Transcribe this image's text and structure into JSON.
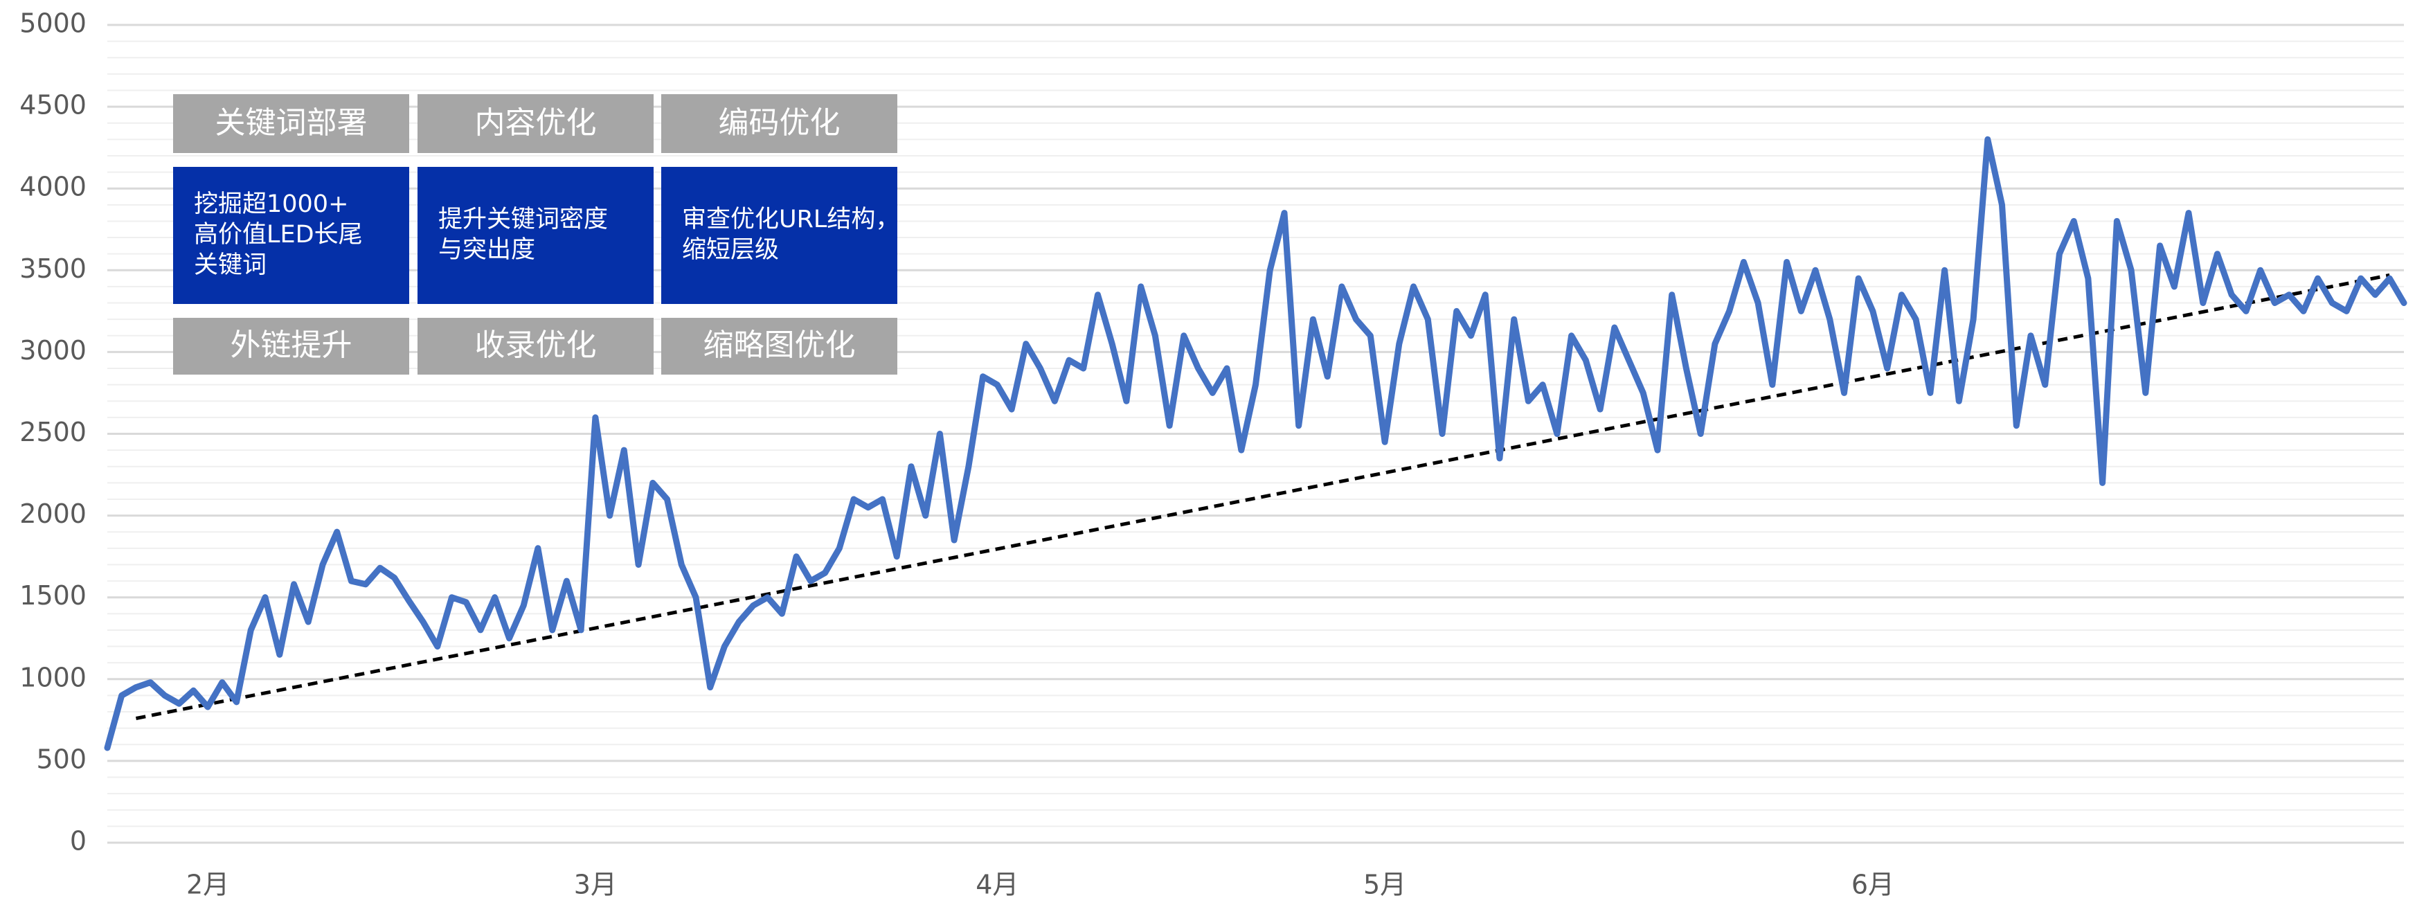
{
  "chart_data": {
    "type": "line",
    "categories": [
      null,
      null,
      null,
      null,
      null,
      null,
      null,
      "2月",
      null,
      null,
      null,
      null,
      null,
      null,
      null,
      null,
      null,
      null,
      null,
      null,
      null,
      null,
      null,
      null,
      null,
      null,
      null,
      null,
      null,
      null,
      null,
      null,
      null,
      null,
      "3月",
      null,
      null,
      null,
      null,
      null,
      null,
      null,
      null,
      null,
      null,
      null,
      null,
      null,
      null,
      null,
      null,
      null,
      null,
      null,
      null,
      null,
      null,
      null,
      null,
      null,
      null,
      null,
      "4月",
      null,
      null,
      null,
      null,
      null,
      null,
      null,
      null,
      null,
      null,
      null,
      null,
      null,
      null,
      null,
      null,
      null,
      null,
      null,
      null,
      null,
      null,
      null,
      null,
      null,
      null,
      "5月",
      null,
      null,
      null,
      null,
      null,
      null,
      null,
      null,
      null,
      null,
      null,
      null,
      null,
      null,
      null,
      null,
      null,
      null,
      null,
      null,
      null,
      null,
      null,
      null,
      null,
      null,
      null,
      null,
      null,
      null,
      null,
      null,
      null,
      "6月",
      null,
      null,
      null,
      null,
      null,
      null,
      null,
      null,
      null,
      null,
      null,
      null,
      null,
      null,
      null,
      null,
      null,
      null,
      null,
      null,
      null,
      null,
      null,
      null,
      null,
      null,
      null,
      null,
      null,
      null,
      null,
      null,
      null,
      null,
      null,
      null,
      null
    ],
    "series": [
      {
        "color": "#4472c4",
        "values": [
          580,
          900,
          950,
          980,
          900,
          850,
          930,
          830,
          980,
          860,
          1300,
          1500,
          1150,
          1580,
          1350,
          1700,
          1900,
          1600,
          1580,
          1680,
          1620,
          1480,
          1350,
          1200,
          1500,
          1470,
          1300,
          1500,
          1250,
          1450,
          1800,
          1300,
          1600,
          1300,
          2600,
          2000,
          2400,
          1700,
          2200,
          2100,
          1700,
          1500,
          950,
          1200,
          1350,
          1450,
          1500,
          1400,
          1750,
          1600,
          1650,
          1800,
          2100,
          2050,
          2100,
          1750,
          2300,
          2000,
          2500,
          1850,
          2300,
          2850,
          2800,
          2650,
          3050,
          2900,
          2700,
          2950,
          2900,
          3350,
          3050,
          2700,
          3400,
          3100,
          2550,
          3100,
          2900,
          2750,
          2900,
          2400,
          2800,
          3500,
          3850,
          2550,
          3200,
          2850,
          3400,
          3200,
          3100,
          2450,
          3050,
          3400,
          3200,
          2500,
          3250,
          3100,
          3350,
          2350,
          3200,
          2700,
          2800,
          2500,
          3100,
          2950,
          2650,
          3150,
          2950,
          2750,
          2400,
          3350,
          2900,
          2500,
          3050,
          3250,
          3550,
          3300,
          2800,
          3550,
          3250,
          3500,
          3200,
          2750,
          3450,
          3250,
          2900,
          3350,
          3200,
          2750,
          3500,
          2700,
          3200,
          4300,
          3900,
          2550,
          3100,
          2800,
          3600,
          3800,
          3450,
          2200,
          3800,
          3500,
          2750,
          3650,
          3400,
          3850,
          3300,
          3600,
          3350,
          3250,
          3500,
          3300,
          3350,
          3250,
          3450,
          3300,
          3250,
          3450,
          3350,
          3450,
          3300
        ]
      }
    ],
    "trendline": {
      "values": [
        760,
        3470
      ],
      "color": "#000000",
      "dashed": true
    },
    "ylim": [
      0,
      5000
    ],
    "yticks": [
      0,
      500,
      1000,
      1500,
      2000,
      2500,
      3000,
      3500,
      4000,
      4500,
      5000
    ],
    "minor_grid_step": 100,
    "grid": true,
    "annotations": {
      "headers": [
        "关键词部署",
        "内容优化",
        "编码优化"
      ],
      "details": [
        [
          "挖掘超1000+",
          "高价值LED长尾",
          "关键词"
        ],
        [
          "提升关键词密度",
          "与突出度"
        ],
        [
          "审查优化URL结构，",
          "缩短层级"
        ]
      ],
      "footers": [
        "外链提升",
        "收录优化",
        "缩略图优化"
      ],
      "header_color": "#a6a6a6",
      "detail_color": "#0530a8"
    }
  }
}
